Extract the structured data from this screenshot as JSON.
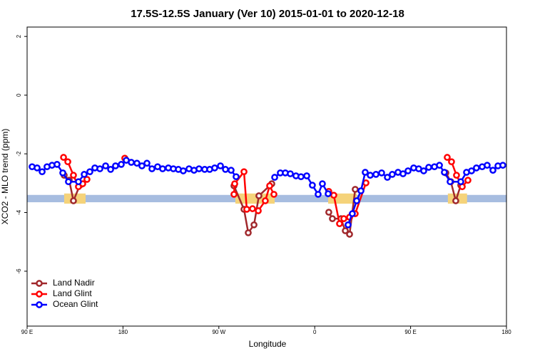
{
  "chart_data": {
    "type": "line",
    "title": "17.5S-12.5S January (Ver 10)   2015-01-01 to 2020-12-18",
    "x_label": "Longitude",
    "y_label": "XCO2 - MLO trend (ppm)",
    "xlim": [
      90,
      540
    ],
    "xticks": [
      {
        "value": 90,
        "label": "90 E"
      },
      {
        "value": 180,
        "label": "180"
      },
      {
        "value": 270,
        "label": "90 W"
      },
      {
        "value": 360,
        "label": "0"
      },
      {
        "value": 450,
        "label": "90 E"
      },
      {
        "value": 540,
        "label": "180"
      }
    ],
    "ylim": [
      -7.87,
      2.32
    ],
    "yticks": [
      -6,
      -4,
      -2,
      0,
      2
    ],
    "legend": "bottomleft",
    "band": {
      "ymin": -3.65,
      "ymax": -3.4,
      "color": "#a7bde0"
    },
    "highlights": {
      "color": "#f5d37a",
      "ranges": [
        [
          124.8,
          144.9
        ],
        [
          285.5,
          322.4
        ],
        [
          372.6,
          399.4
        ],
        [
          485,
          503
        ]
      ]
    },
    "series": [
      {
        "name": "Land Nadir",
        "color": "#a0282c",
        "x": [
          124.8,
          129.5,
          133.5,
          139.5,
          210,
          284.2,
          293.6,
          297.6,
          303.0,
          307.6,
          319.7,
          345,
          373.2,
          376.6,
          384.6,
          388.7,
          392.7,
          398.0,
          440,
          483.1,
          487.8,
          492.4,
          497.1
        ],
        "values": [
          -2.73,
          -2.9,
          -3.6,
          -3.07,
          null,
          -3.09,
          -3.89,
          -4.69,
          -4.42,
          -3.43,
          -3.02,
          null,
          -3.99,
          -4.21,
          -4.21,
          -4.62,
          -4.74,
          -3.21,
          null,
          -2.65,
          -2.95,
          -3.6,
          -3.07
        ]
      },
      {
        "name": "Land Glint",
        "color": "#ff0000",
        "x": [
          124.2,
          128.2,
          133.5,
          138.2,
          142.2,
          146.2,
          165,
          181.7,
          230,
          284.2,
          284.9,
          293.6,
          296.2,
          301.6,
          307.0,
          313.6,
          317.7,
          321.7,
          345,
          373.2,
          377.9,
          383.3,
          387.3,
          392.7,
          398.0,
          408.1,
          445,
          484.4,
          488.4,
          493.1,
          498.5,
          503.8
        ],
        "values": [
          -2.12,
          -2.27,
          -2.73,
          -3.12,
          -3.02,
          -2.87,
          null,
          -2.15,
          null,
          -3.38,
          -3.02,
          -2.61,
          -3.89,
          -3.87,
          -3.94,
          -3.6,
          -3.09,
          -3.38,
          null,
          -3.28,
          -3.41,
          -4.38,
          -4.21,
          -4.16,
          -4.04,
          -2.99,
          null,
          -2.12,
          -2.27,
          -2.73,
          -3.12,
          -2.9
        ]
      },
      {
        "name": "Ocean Glint",
        "color": "#0000ff",
        "x": [
          94.7,
          99.4,
          104.1,
          108.7,
          113.4,
          118.1,
          123.5,
          128.8,
          138.2,
          143.6,
          148.9,
          153.6,
          158.3,
          163.7,
          168.4,
          173.0,
          178.4,
          183.1,
          187.8,
          193.1,
          197.8,
          202.5,
          207.2,
          212.5,
          217.2,
          222.6,
          227.3,
          232.0,
          236.6,
          242.0,
          246.7,
          251.4,
          256.7,
          261.4,
          266.1,
          271.5,
          276.2,
          281.5,
          286.2,
          304,
          322.4,
          327.7,
          332.4,
          337.1,
          342.4,
          347.1,
          352.5,
          357.8,
          363.2,
          367.2,
          372.6,
          382,
          391.3,
          395.3,
          399.4,
          403.4,
          407.4,
          412.1,
          417.5,
          422.8,
          428.2,
          432.8,
          438.2,
          442.9,
          447.6,
          452.9,
          457.6,
          462.3,
          467.0,
          472.4,
          477.1,
          481.7,
          487.1,
          497.1,
          502.5,
          507.2,
          511.8,
          517.2,
          521.9,
          527.3,
          532.0,
          536.6
        ],
        "values": [
          -2.44,
          -2.48,
          -2.61,
          -2.44,
          -2.39,
          -2.36,
          -2.65,
          -2.95,
          -2.95,
          -2.7,
          -2.61,
          -2.48,
          -2.51,
          -2.41,
          -2.53,
          -2.41,
          -2.36,
          -2.22,
          -2.29,
          -2.32,
          -2.41,
          -2.32,
          -2.51,
          -2.44,
          -2.51,
          -2.48,
          -2.51,
          -2.53,
          -2.58,
          -2.51,
          -2.56,
          -2.51,
          -2.53,
          -2.53,
          -2.48,
          -2.41,
          -2.53,
          -2.56,
          -2.78,
          null,
          -2.8,
          -2.65,
          -2.65,
          -2.68,
          -2.75,
          -2.78,
          -2.75,
          -3.07,
          -3.38,
          -3.02,
          -3.36,
          null,
          -4.42,
          -4.04,
          -3.6,
          -3.26,
          -2.63,
          -2.73,
          -2.7,
          -2.65,
          -2.8,
          -2.7,
          -2.63,
          -2.68,
          -2.58,
          -2.48,
          -2.51,
          -2.58,
          -2.46,
          -2.44,
          -2.39,
          -2.63,
          -2.95,
          -2.95,
          -2.63,
          -2.58,
          -2.48,
          -2.44,
          -2.39,
          -2.56,
          -2.41,
          -2.39
        ]
      }
    ]
  }
}
